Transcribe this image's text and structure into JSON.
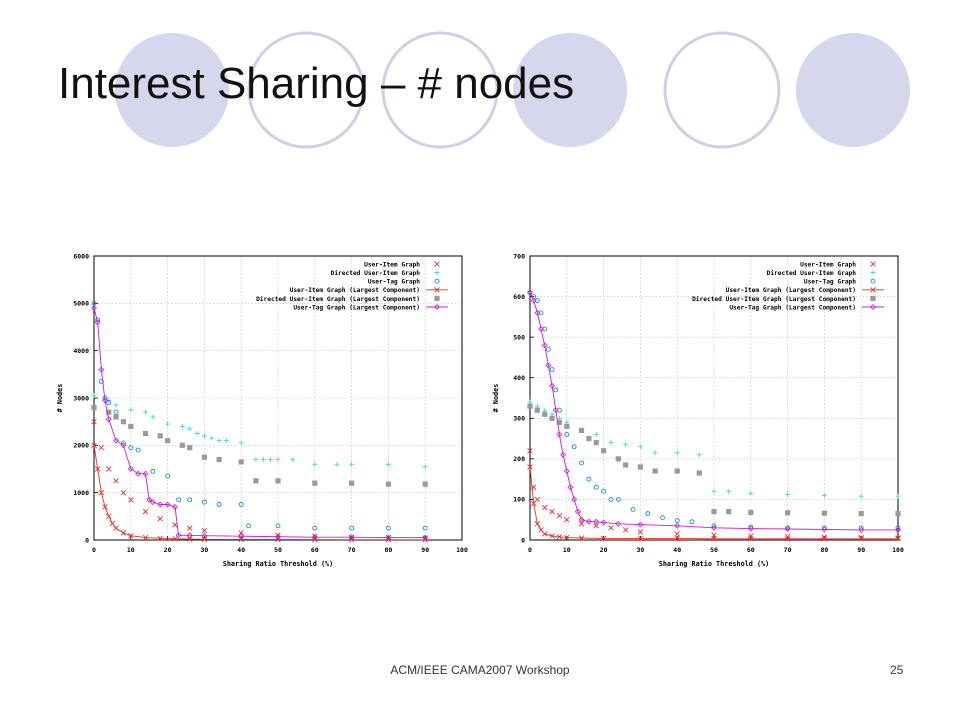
{
  "slide": {
    "title": "Interest Sharing – # nodes",
    "footer": "ACM/IEEE CAMA2007 Workshop",
    "page_number": "25"
  },
  "decor_colors": {
    "filled": "#d6d6ec",
    "outline": "#cfcfe6"
  },
  "legend_labels": [
    "User-Item Graph",
    "Directed User-Item Graph",
    "User-Tag Graph",
    "User-Item Graph (Largest Component)",
    "Directed User-Item Graph (Largest Component)",
    "User-Tag Graph (Largest Component)"
  ],
  "series_colors": [
    "#e8322e",
    "#3fd6e8",
    "#1e8cd6",
    "#e8322e",
    "#9a9a9a",
    "#c21fd6"
  ],
  "series_markers": [
    "x",
    "plus",
    "circle",
    "x-line",
    "square",
    "diamond-line"
  ],
  "chart_data": [
    {
      "type": "scatter",
      "xlabel": "Sharing Ratio Threshold (%)",
      "ylabel": "# Nodes",
      "xlim": [
        0,
        100
      ],
      "ylim": [
        0,
        6000
      ],
      "xticks": [
        0,
        10,
        20,
        30,
        40,
        50,
        60,
        70,
        80,
        90,
        100
      ],
      "yticks": [
        0,
        1000,
        2000,
        3000,
        4000,
        5000,
        6000
      ],
      "grid": true,
      "legend_position": "top-right",
      "series": [
        {
          "name": "User-Item Graph",
          "x": [
            0,
            2,
            4,
            6,
            8,
            10,
            14,
            18,
            22,
            26,
            30,
            40,
            50,
            60,
            70,
            80,
            90
          ],
          "y": [
            2500,
            1950,
            1500,
            1250,
            1000,
            850,
            600,
            450,
            320,
            250,
            200,
            150,
            100,
            80,
            60,
            50,
            40
          ]
        },
        {
          "name": "Directed User-Item Graph",
          "x": [
            0,
            4,
            6,
            10,
            14,
            16,
            20,
            24,
            26,
            28,
            30,
            32,
            34,
            36,
            40,
            44,
            46,
            48,
            50,
            54,
            60,
            66,
            70,
            80,
            90
          ],
          "y": [
            3050,
            2950,
            2850,
            2750,
            2700,
            2600,
            2450,
            2400,
            2350,
            2250,
            2200,
            2150,
            2100,
            2100,
            2050,
            1700,
            1700,
            1700,
            1700,
            1700,
            1600,
            1600,
            1600,
            1600,
            1550
          ]
        },
        {
          "name": "User-Tag Graph",
          "x": [
            0,
            1,
            2,
            3,
            4,
            6,
            8,
            10,
            12,
            16,
            20,
            23,
            26,
            30,
            34,
            40,
            42,
            50,
            60,
            70,
            80,
            90
          ],
          "y": [
            5000,
            4650,
            3350,
            3000,
            2900,
            2700,
            2050,
            1950,
            1900,
            1450,
            1350,
            850,
            850,
            800,
            750,
            750,
            300,
            300,
            250,
            250,
            250,
            250
          ]
        },
        {
          "name": "User-Item Graph (Largest Component)",
          "x": [
            0,
            1,
            2,
            3,
            4,
            5,
            6,
            8,
            10,
            14,
            18,
            22,
            26,
            30,
            40,
            50,
            60,
            70,
            80,
            90
          ],
          "y": [
            2000,
            1500,
            1000,
            700,
            500,
            350,
            250,
            150,
            90,
            50,
            35,
            25,
            20,
            15,
            12,
            10,
            8,
            7,
            6,
            5
          ]
        },
        {
          "name": "Directed User-Item Graph (Largest Component)",
          "x": [
            0,
            4,
            6,
            8,
            10,
            14,
            18,
            20,
            24,
            26,
            30,
            34,
            40,
            44,
            50,
            60,
            70,
            80,
            90
          ],
          "y": [
            2800,
            2700,
            2600,
            2500,
            2400,
            2250,
            2200,
            2100,
            2000,
            1950,
            1750,
            1700,
            1650,
            1250,
            1250,
            1200,
            1200,
            1180,
            1180
          ]
        },
        {
          "name": "User-Tag Graph (Largest Component)",
          "x": [
            0,
            1,
            2,
            3,
            4,
            6,
            8,
            10,
            12,
            14,
            15,
            16,
            18,
            20,
            22,
            23,
            26,
            30,
            40,
            50,
            60,
            70,
            80,
            90
          ],
          "y": [
            4900,
            4600,
            3600,
            2950,
            2550,
            2100,
            2000,
            1500,
            1400,
            1400,
            850,
            800,
            750,
            750,
            700,
            100,
            100,
            90,
            80,
            70,
            60,
            60,
            50,
            50
          ]
        }
      ]
    },
    {
      "type": "scatter",
      "xlabel": "Sharing Ratio Threshold (%)",
      "ylabel": "# Nodes",
      "xlim": [
        0,
        100
      ],
      "ylim": [
        0,
        700
      ],
      "xticks": [
        0,
        10,
        20,
        30,
        40,
        50,
        60,
        70,
        80,
        90,
        100
      ],
      "yticks": [
        0,
        100,
        200,
        300,
        400,
        500,
        600,
        700
      ],
      "grid": true,
      "legend_position": "top-right",
      "series": [
        {
          "name": "User-Item Graph",
          "x": [
            0,
            1,
            2,
            4,
            6,
            8,
            10,
            14,
            18,
            22,
            26,
            30,
            40,
            50,
            60,
            70,
            80,
            90,
            100
          ],
          "y": [
            220,
            130,
            100,
            80,
            70,
            60,
            50,
            40,
            35,
            30,
            25,
            20,
            15,
            12,
            10,
            8,
            7,
            6,
            5
          ]
        },
        {
          "name": "Directed User-Item Graph",
          "x": [
            0,
            2,
            4,
            6,
            8,
            10,
            14,
            18,
            22,
            26,
            30,
            34,
            40,
            46,
            50,
            54,
            60,
            70,
            80,
            90,
            100
          ],
          "y": [
            340,
            330,
            320,
            310,
            300,
            290,
            270,
            260,
            240,
            235,
            230,
            215,
            215,
            210,
            120,
            120,
            115,
            112,
            110,
            108,
            108
          ]
        },
        {
          "name": "User-Tag Graph",
          "x": [
            0,
            1,
            2,
            3,
            4,
            5,
            6,
            7,
            8,
            10,
            12,
            14,
            16,
            18,
            20,
            22,
            24,
            28,
            32,
            36,
            40,
            44,
            50,
            60,
            70,
            80,
            90,
            100
          ],
          "y": [
            610,
            600,
            590,
            560,
            520,
            470,
            420,
            370,
            320,
            260,
            230,
            190,
            150,
            130,
            120,
            100,
            100,
            75,
            65,
            55,
            48,
            45,
            35,
            32,
            30,
            30,
            30,
            30
          ]
        },
        {
          "name": "User-Item Graph (Largest Component)",
          "x": [
            0,
            1,
            2,
            3,
            4,
            6,
            8,
            10,
            14,
            20,
            30,
            40,
            50,
            60,
            70,
            80,
            90,
            100
          ],
          "y": [
            180,
            90,
            40,
            25,
            15,
            10,
            8,
            6,
            5,
            4,
            4,
            4,
            3,
            3,
            3,
            3,
            3,
            3
          ]
        },
        {
          "name": "Directed User-Item Graph (Largest Component)",
          "x": [
            0,
            2,
            4,
            6,
            8,
            10,
            14,
            16,
            18,
            20,
            24,
            26,
            30,
            34,
            40,
            46,
            50,
            54,
            60,
            70,
            80,
            90,
            100
          ],
          "y": [
            330,
            320,
            310,
            300,
            290,
            280,
            270,
            250,
            240,
            220,
            200,
            185,
            180,
            170,
            170,
            165,
            70,
            70,
            68,
            67,
            66,
            65,
            65
          ]
        },
        {
          "name": "User-Tag Graph (Largest Component)",
          "x": [
            0,
            1,
            2,
            3,
            4,
            5,
            6,
            7,
            8,
            9,
            10,
            11,
            12,
            13,
            14,
            16,
            18,
            20,
            24,
            30,
            40,
            50,
            60,
            70,
            80,
            90,
            100
          ],
          "y": [
            610,
            590,
            560,
            520,
            480,
            430,
            380,
            320,
            260,
            210,
            170,
            130,
            100,
            70,
            50,
            45,
            45,
            43,
            40,
            38,
            35,
            30,
            28,
            27,
            26,
            25,
            25
          ]
        }
      ]
    }
  ]
}
